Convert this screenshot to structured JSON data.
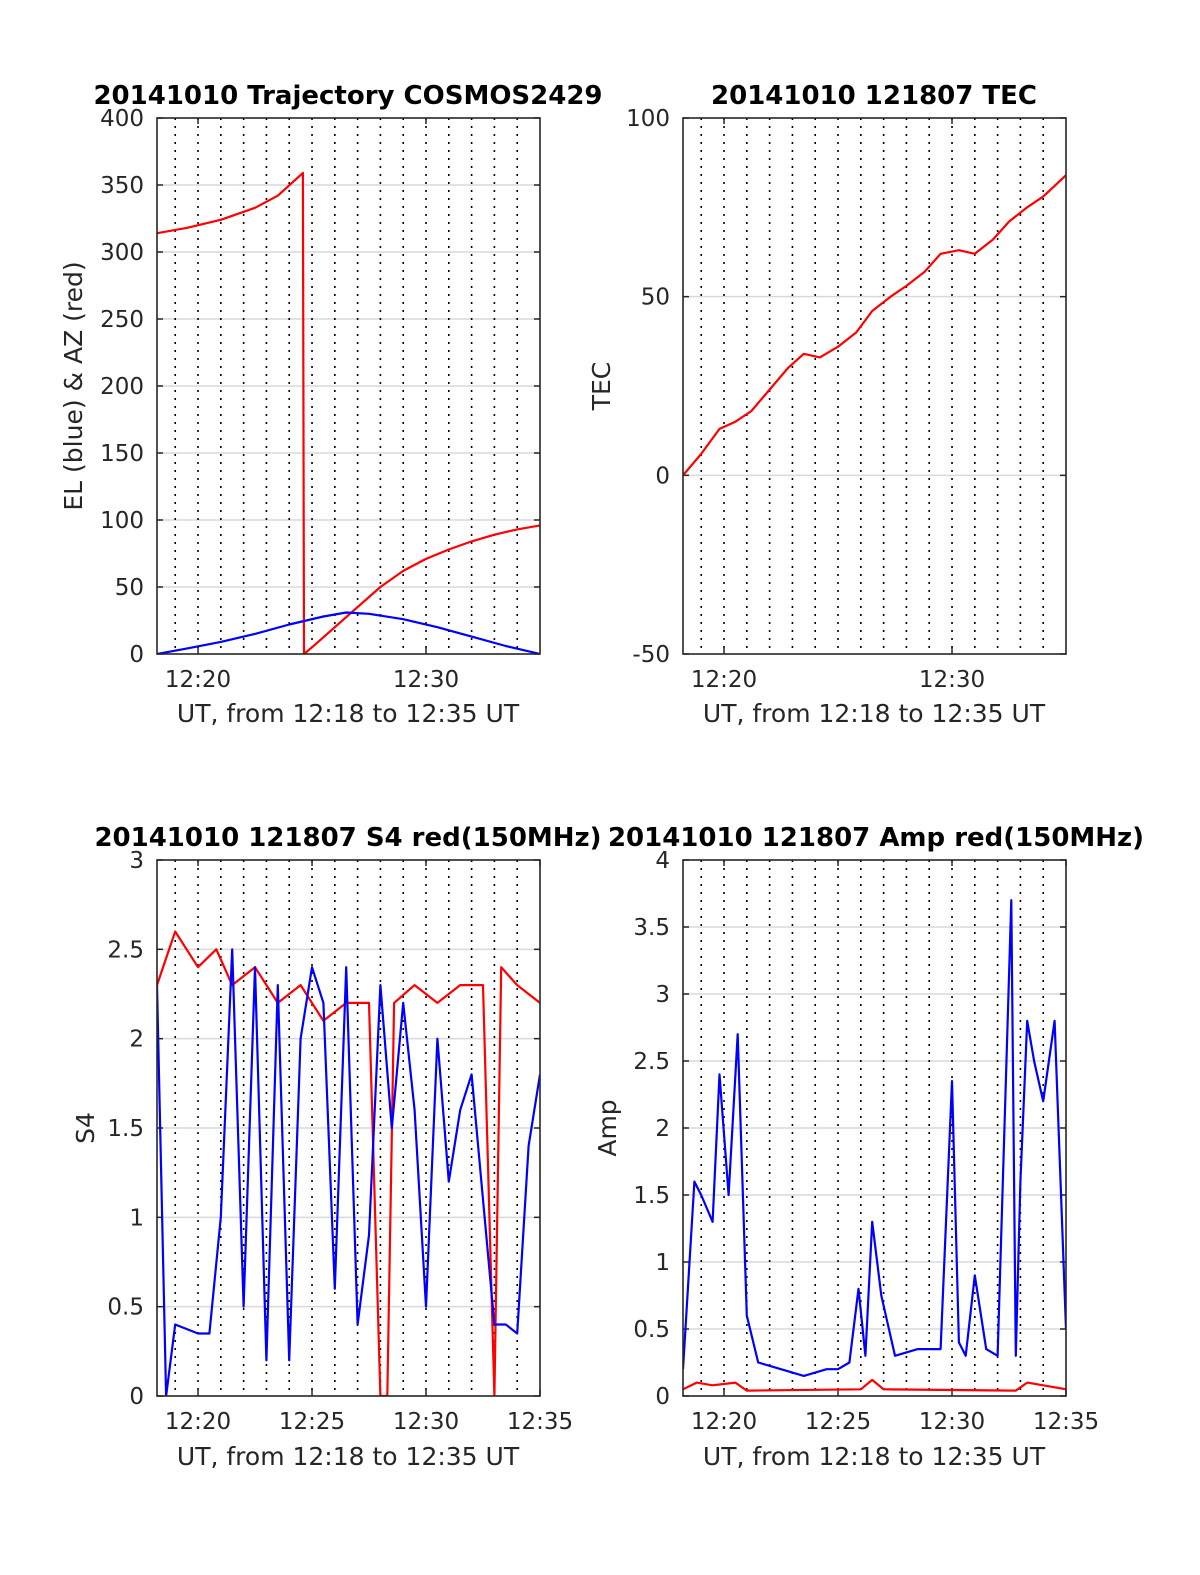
{
  "colors": {
    "red": "#ff0000",
    "blue": "#0000ff",
    "grid": "#d9d9d9",
    "minor_grid": "#000000",
    "axes": "#262626"
  },
  "chart_data": [
    {
      "type": "line",
      "title": "20141010 Trajectory COSMOS2429",
      "ylabel": "EL (blue) & AZ (red)",
      "xlabel": "UT, from 12:18 to 12:35 UT",
      "xlim_minutes": [
        18.2,
        35.0
      ],
      "ylim": [
        0,
        400
      ],
      "yticks": [
        "0",
        "50",
        "100",
        "150",
        "200",
        "250",
        "300",
        "350",
        "400"
      ],
      "xticks": [
        "12:20",
        "12:30"
      ],
      "grid": true,
      "series": [
        {
          "color": "red",
          "x": [
            18.2,
            19.5,
            21.0,
            22.5,
            23.5,
            24.6,
            24.65,
            25.0,
            26.0,
            27.0,
            28.0,
            29.0,
            30.0,
            31.0,
            32.0,
            33.0,
            34.0,
            35.0
          ],
          "y": [
            314,
            318,
            324,
            333,
            342,
            359,
            0,
            5,
            20,
            35,
            50,
            62,
            71,
            78,
            84,
            89,
            93,
            96
          ]
        },
        {
          "color": "blue",
          "x": [
            18.2,
            19.5,
            21.0,
            22.5,
            24.0,
            25.5,
            26.5,
            27.5,
            29.0,
            30.5,
            32.0,
            33.5,
            35.0
          ],
          "y": [
            0,
            4,
            9,
            15,
            22,
            28,
            31,
            30,
            26,
            20,
            13,
            6,
            0
          ]
        }
      ]
    },
    {
      "type": "line",
      "title": "20141010 121807 TEC",
      "ylabel": "TEC",
      "xlabel": "UT, from 12:18 to 12:35 UT",
      "xlim_minutes": [
        18.2,
        35.0
      ],
      "ylim": [
        -50,
        100
      ],
      "yticks": [
        "-50",
        "0",
        "50",
        "100"
      ],
      "xticks": [
        "12:20",
        "12:30"
      ],
      "grid": true,
      "series": [
        {
          "color": "red",
          "x": [
            18.2,
            19.0,
            19.8,
            20.5,
            21.2,
            22.0,
            22.8,
            23.5,
            24.2,
            25.0,
            25.8,
            26.5,
            27.3,
            28.0,
            28.8,
            29.5,
            30.3,
            31.0,
            31.8,
            32.5,
            33.3,
            34.0,
            35.0
          ],
          "y": [
            0,
            6,
            13,
            15,
            18,
            24,
            30,
            34,
            33,
            36,
            40,
            46,
            50,
            53,
            57,
            62,
            63,
            62,
            66,
            71,
            75,
            78,
            84
          ]
        }
      ]
    },
    {
      "type": "line",
      "title": "20141010 121807 S4 red(150MHz)",
      "ylabel": "S4",
      "xlabel": "UT, from 12:18 to 12:35 UT",
      "xlim_minutes": [
        18.2,
        35.0
      ],
      "ylim": [
        0,
        3
      ],
      "yticks": [
        "0",
        "0.5",
        "1",
        "1.5",
        "2",
        "2.5",
        "3"
      ],
      "xticks": [
        "12:20",
        "12:25",
        "12:30",
        "12:35"
      ],
      "grid": true,
      "series": [
        {
          "color": "red",
          "x": [
            18.2,
            19.0,
            20.0,
            20.8,
            21.5,
            22.5,
            23.5,
            24.5,
            25.5,
            26.5,
            27.5,
            28.0,
            28.3,
            28.6,
            29.5,
            30.5,
            31.5,
            32.5,
            33.0,
            33.3,
            34.0,
            35.0
          ],
          "y": [
            2.3,
            2.6,
            2.4,
            2.5,
            2.3,
            2.4,
            2.2,
            2.3,
            2.1,
            2.2,
            2.2,
            0.0,
            0.0,
            2.2,
            2.3,
            2.2,
            2.3,
            2.3,
            0.0,
            2.4,
            2.3,
            2.2
          ]
        },
        {
          "color": "blue",
          "x": [
            18.2,
            18.6,
            19.0,
            20.0,
            20.5,
            21.0,
            21.5,
            22.0,
            22.5,
            23.0,
            23.5,
            24.0,
            24.5,
            25.0,
            25.5,
            26.0,
            26.5,
            27.0,
            27.5,
            28.0,
            28.5,
            29.0,
            29.5,
            30.0,
            30.5,
            31.0,
            31.5,
            32.0,
            32.5,
            33.0,
            33.5,
            34.0,
            34.5,
            35.0
          ],
          "y": [
            2.3,
            0.0,
            0.4,
            0.35,
            0.35,
            1.0,
            2.5,
            0.5,
            2.4,
            0.2,
            2.3,
            0.2,
            2.0,
            2.4,
            2.2,
            0.6,
            2.4,
            0.4,
            0.9,
            2.3,
            1.5,
            2.2,
            1.6,
            0.5,
            2.0,
            1.2,
            1.6,
            1.8,
            1.1,
            0.4,
            0.4,
            0.35,
            1.4,
            1.8
          ]
        }
      ]
    },
    {
      "type": "line",
      "title": "20141010 121807 Amp red(150MHz)",
      "ylabel": "Amp",
      "xlabel": "UT, from 12:18 to 12:35 UT",
      "xlim_minutes": [
        18.2,
        35.0
      ],
      "ylim": [
        0,
        4
      ],
      "yticks": [
        "0",
        "0.5",
        "1",
        "1.5",
        "2",
        "2.5",
        "3",
        "3.5",
        "4"
      ],
      "xticks": [
        "12:20",
        "12:25",
        "12:30",
        "12:35"
      ],
      "grid": true,
      "series": [
        {
          "color": "red",
          "x": [
            18.2,
            18.8,
            19.5,
            20.5,
            21.0,
            26.0,
            26.5,
            27.0,
            32.8,
            33.3,
            34.0,
            35.0
          ],
          "y": [
            0.05,
            0.1,
            0.08,
            0.1,
            0.04,
            0.05,
            0.12,
            0.05,
            0.04,
            0.1,
            0.08,
            0.05
          ]
        },
        {
          "color": "blue",
          "x": [
            18.2,
            18.7,
            19.0,
            19.5,
            19.8,
            20.2,
            20.6,
            21.0,
            21.5,
            22.5,
            23.5,
            24.5,
            25.0,
            25.5,
            25.9,
            26.2,
            26.5,
            26.9,
            27.5,
            28.5,
            29.5,
            30.0,
            30.3,
            30.6,
            31.0,
            31.5,
            32.0,
            32.6,
            32.8,
            33.0,
            33.3,
            33.6,
            34.0,
            34.5,
            35.0
          ],
          "y": [
            0.2,
            1.6,
            1.5,
            1.3,
            2.4,
            1.5,
            2.7,
            0.6,
            0.25,
            0.2,
            0.15,
            0.2,
            0.2,
            0.25,
            0.8,
            0.3,
            1.3,
            0.75,
            0.3,
            0.35,
            0.35,
            2.35,
            0.4,
            0.3,
            0.9,
            0.35,
            0.3,
            3.7,
            0.3,
            1.6,
            2.8,
            2.5,
            2.2,
            2.8,
            0.5
          ]
        }
      ]
    }
  ]
}
